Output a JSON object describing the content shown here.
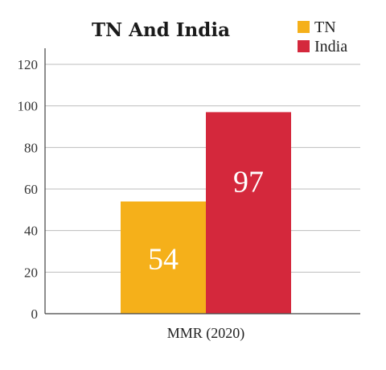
{
  "chart_data": {
    "type": "bar",
    "title": "TN And India",
    "categories": [
      "MMR (2020)"
    ],
    "series": [
      {
        "name": "TN",
        "values": [
          54
        ],
        "color": "#f5b01a"
      },
      {
        "name": "India",
        "values": [
          97
        ],
        "color": "#d4283c"
      }
    ],
    "xlabel": "",
    "ylabel": "",
    "ylim": [
      0,
      120
    ],
    "yticks": [
      "0",
      "20",
      "40",
      "60",
      "80",
      "100",
      "120"
    ],
    "grid": true,
    "legend_position": "top-right",
    "data_labels": [
      "54",
      "97"
    ]
  }
}
